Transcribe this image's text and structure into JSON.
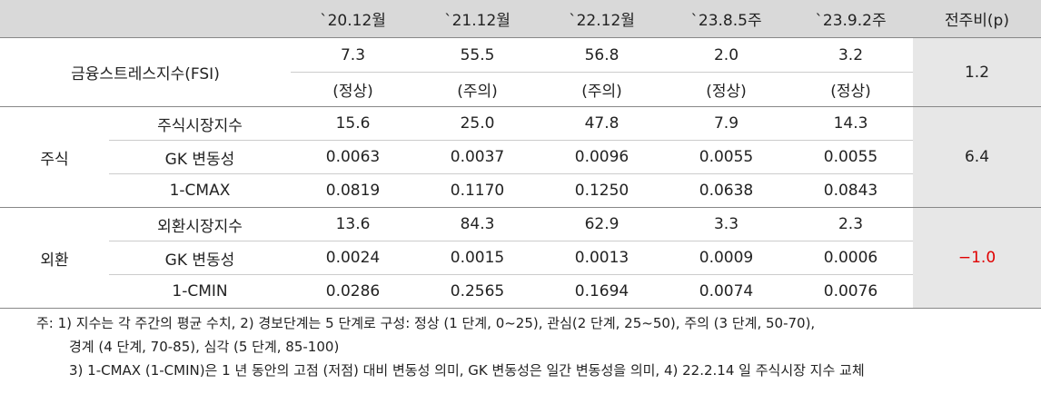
{
  "table": {
    "header": [
      "`20.12월",
      "`21.12월",
      "`22.12월",
      "`23.8.5주",
      "`23.9.2주",
      "전주비(p)"
    ],
    "fsi": {
      "label": "금융스트레스지수(FSI)",
      "values": [
        "7.3",
        "55.5",
        "56.8",
        "2.0",
        "3.2"
      ],
      "status": [
        "(정상)",
        "(주의)",
        "(주의)",
        "(정상)",
        "(정상)"
      ],
      "change": "1.2"
    },
    "sections": [
      {
        "label": "주식",
        "change": "6.4",
        "rows": [
          {
            "label": "주식시장지수",
            "values": [
              "15.6",
              "25.0",
              "47.8",
              "7.9",
              "14.3"
            ]
          },
          {
            "label": "GK 변동성",
            "values": [
              "0.0063",
              "0.0037",
              "0.0096",
              "0.0055",
              "0.0055"
            ]
          },
          {
            "label": "1-CMAX",
            "values": [
              "0.0819",
              "0.1170",
              "0.1250",
              "0.0638",
              "0.0843"
            ]
          }
        ]
      },
      {
        "label": "외환",
        "change": "−1.0",
        "rows": [
          {
            "label": "외환시장지수",
            "values": [
              "13.6",
              "84.3",
              "62.9",
              "3.3",
              "2.3"
            ]
          },
          {
            "label": "GK 변동성",
            "values": [
              "0.0024",
              "0.0015",
              "0.0013",
              "0.0009",
              "0.0006"
            ]
          },
          {
            "label": "1-CMIN",
            "values": [
              "0.0286",
              "0.2565",
              "0.1694",
              "0.0074",
              "0.0076"
            ]
          }
        ]
      }
    ]
  },
  "notes": [
    "주: 1) 지수는 각 주간의 평균 수치, 2) 경보단계는 5 단계로 구성: 정상 (1 단계, 0~25), 관심(2 단계, 25~50), 주의 (3 단계, 50-70),",
    "경계 (4 단계, 70-85), 심각 (5 단계, 85-100)",
    "3) 1-CMAX (1-CMIN)은 1 년 동안의 고점 (저점) 대비 변동성 의미, GK 변동성은 일간 변동성을 의미, 4) 22.2.14 일 주식시장 지수 교체"
  ]
}
